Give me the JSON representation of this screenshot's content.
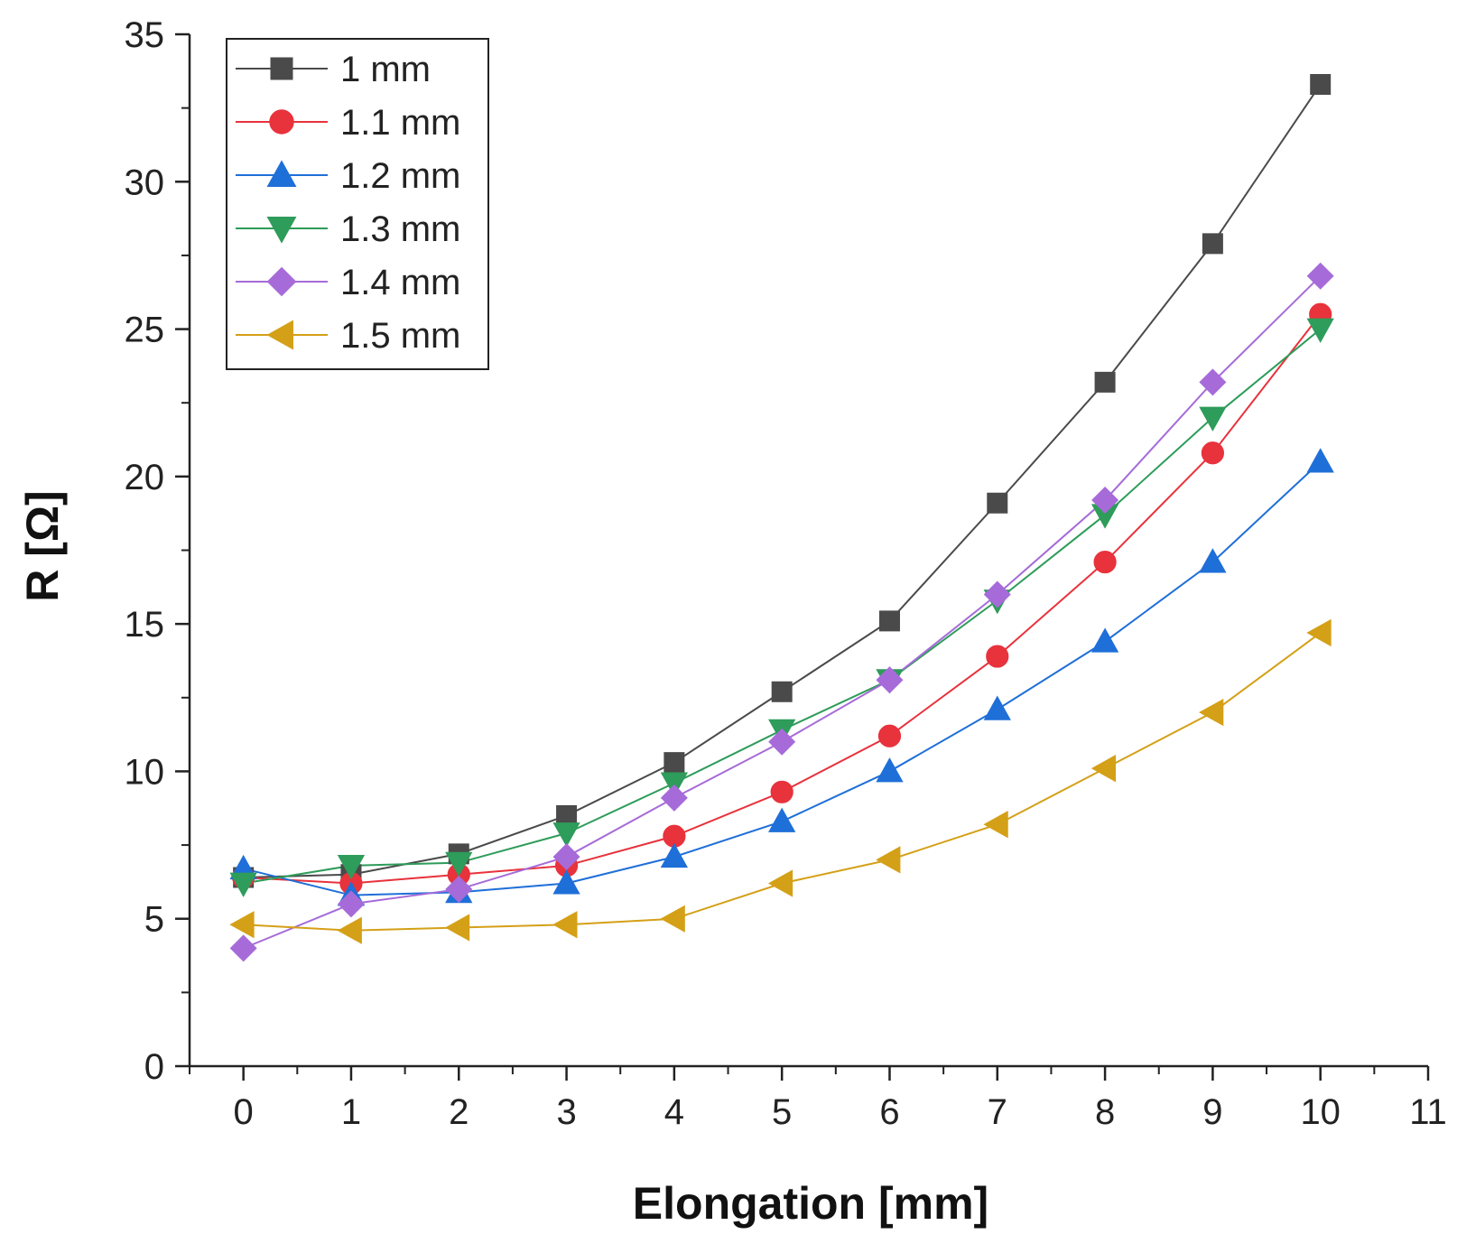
{
  "chart_data": {
    "type": "line",
    "title": "",
    "xlabel": "Elongation [mm]",
    "ylabel": "R [Ω]",
    "xlim": [
      -0.5,
      11
    ],
    "ylim": [
      0,
      35
    ],
    "xticks": [
      0,
      1,
      2,
      3,
      4,
      5,
      6,
      7,
      8,
      9,
      10,
      11
    ],
    "yticks": [
      0,
      5,
      10,
      15,
      20,
      25,
      30,
      35
    ],
    "grid": false,
    "legend_position": "top-left",
    "x": [
      0,
      1,
      2,
      3,
      4,
      5,
      6,
      7,
      8,
      9,
      10
    ],
    "series": [
      {
        "name": "1 mm",
        "color": "#4a4a4a",
        "marker": "square",
        "values": [
          6.4,
          6.5,
          7.2,
          8.5,
          10.3,
          12.7,
          15.1,
          19.1,
          23.2,
          27.9,
          33.3
        ]
      },
      {
        "name": "1.1 mm",
        "color": "#e8323c",
        "marker": "circle",
        "values": [
          6.4,
          6.2,
          6.5,
          6.8,
          7.8,
          9.3,
          11.2,
          13.9,
          17.1,
          20.8,
          25.5
        ]
      },
      {
        "name": "1.2 mm",
        "color": "#1f6fd8",
        "marker": "triangle-up",
        "values": [
          6.7,
          5.8,
          5.9,
          6.2,
          7.1,
          8.3,
          10.0,
          12.1,
          14.4,
          17.1,
          20.5
        ]
      },
      {
        "name": "1.3 mm",
        "color": "#2e9c5a",
        "marker": "triangle-down",
        "values": [
          6.2,
          6.8,
          6.9,
          7.9,
          9.6,
          11.4,
          13.1,
          15.8,
          18.7,
          22.0,
          25.0
        ]
      },
      {
        "name": "1.4 mm",
        "color": "#a66bd9",
        "marker": "diamond",
        "values": [
          4.0,
          5.5,
          6.0,
          7.1,
          9.1,
          11.0,
          13.1,
          16.0,
          19.2,
          23.2,
          26.8
        ]
      },
      {
        "name": "1.5 mm",
        "color": "#d4a017",
        "marker": "triangle-left",
        "values": [
          4.8,
          4.6,
          4.7,
          4.8,
          5.0,
          6.2,
          7.0,
          8.2,
          10.1,
          12.0,
          14.7
        ]
      }
    ]
  }
}
